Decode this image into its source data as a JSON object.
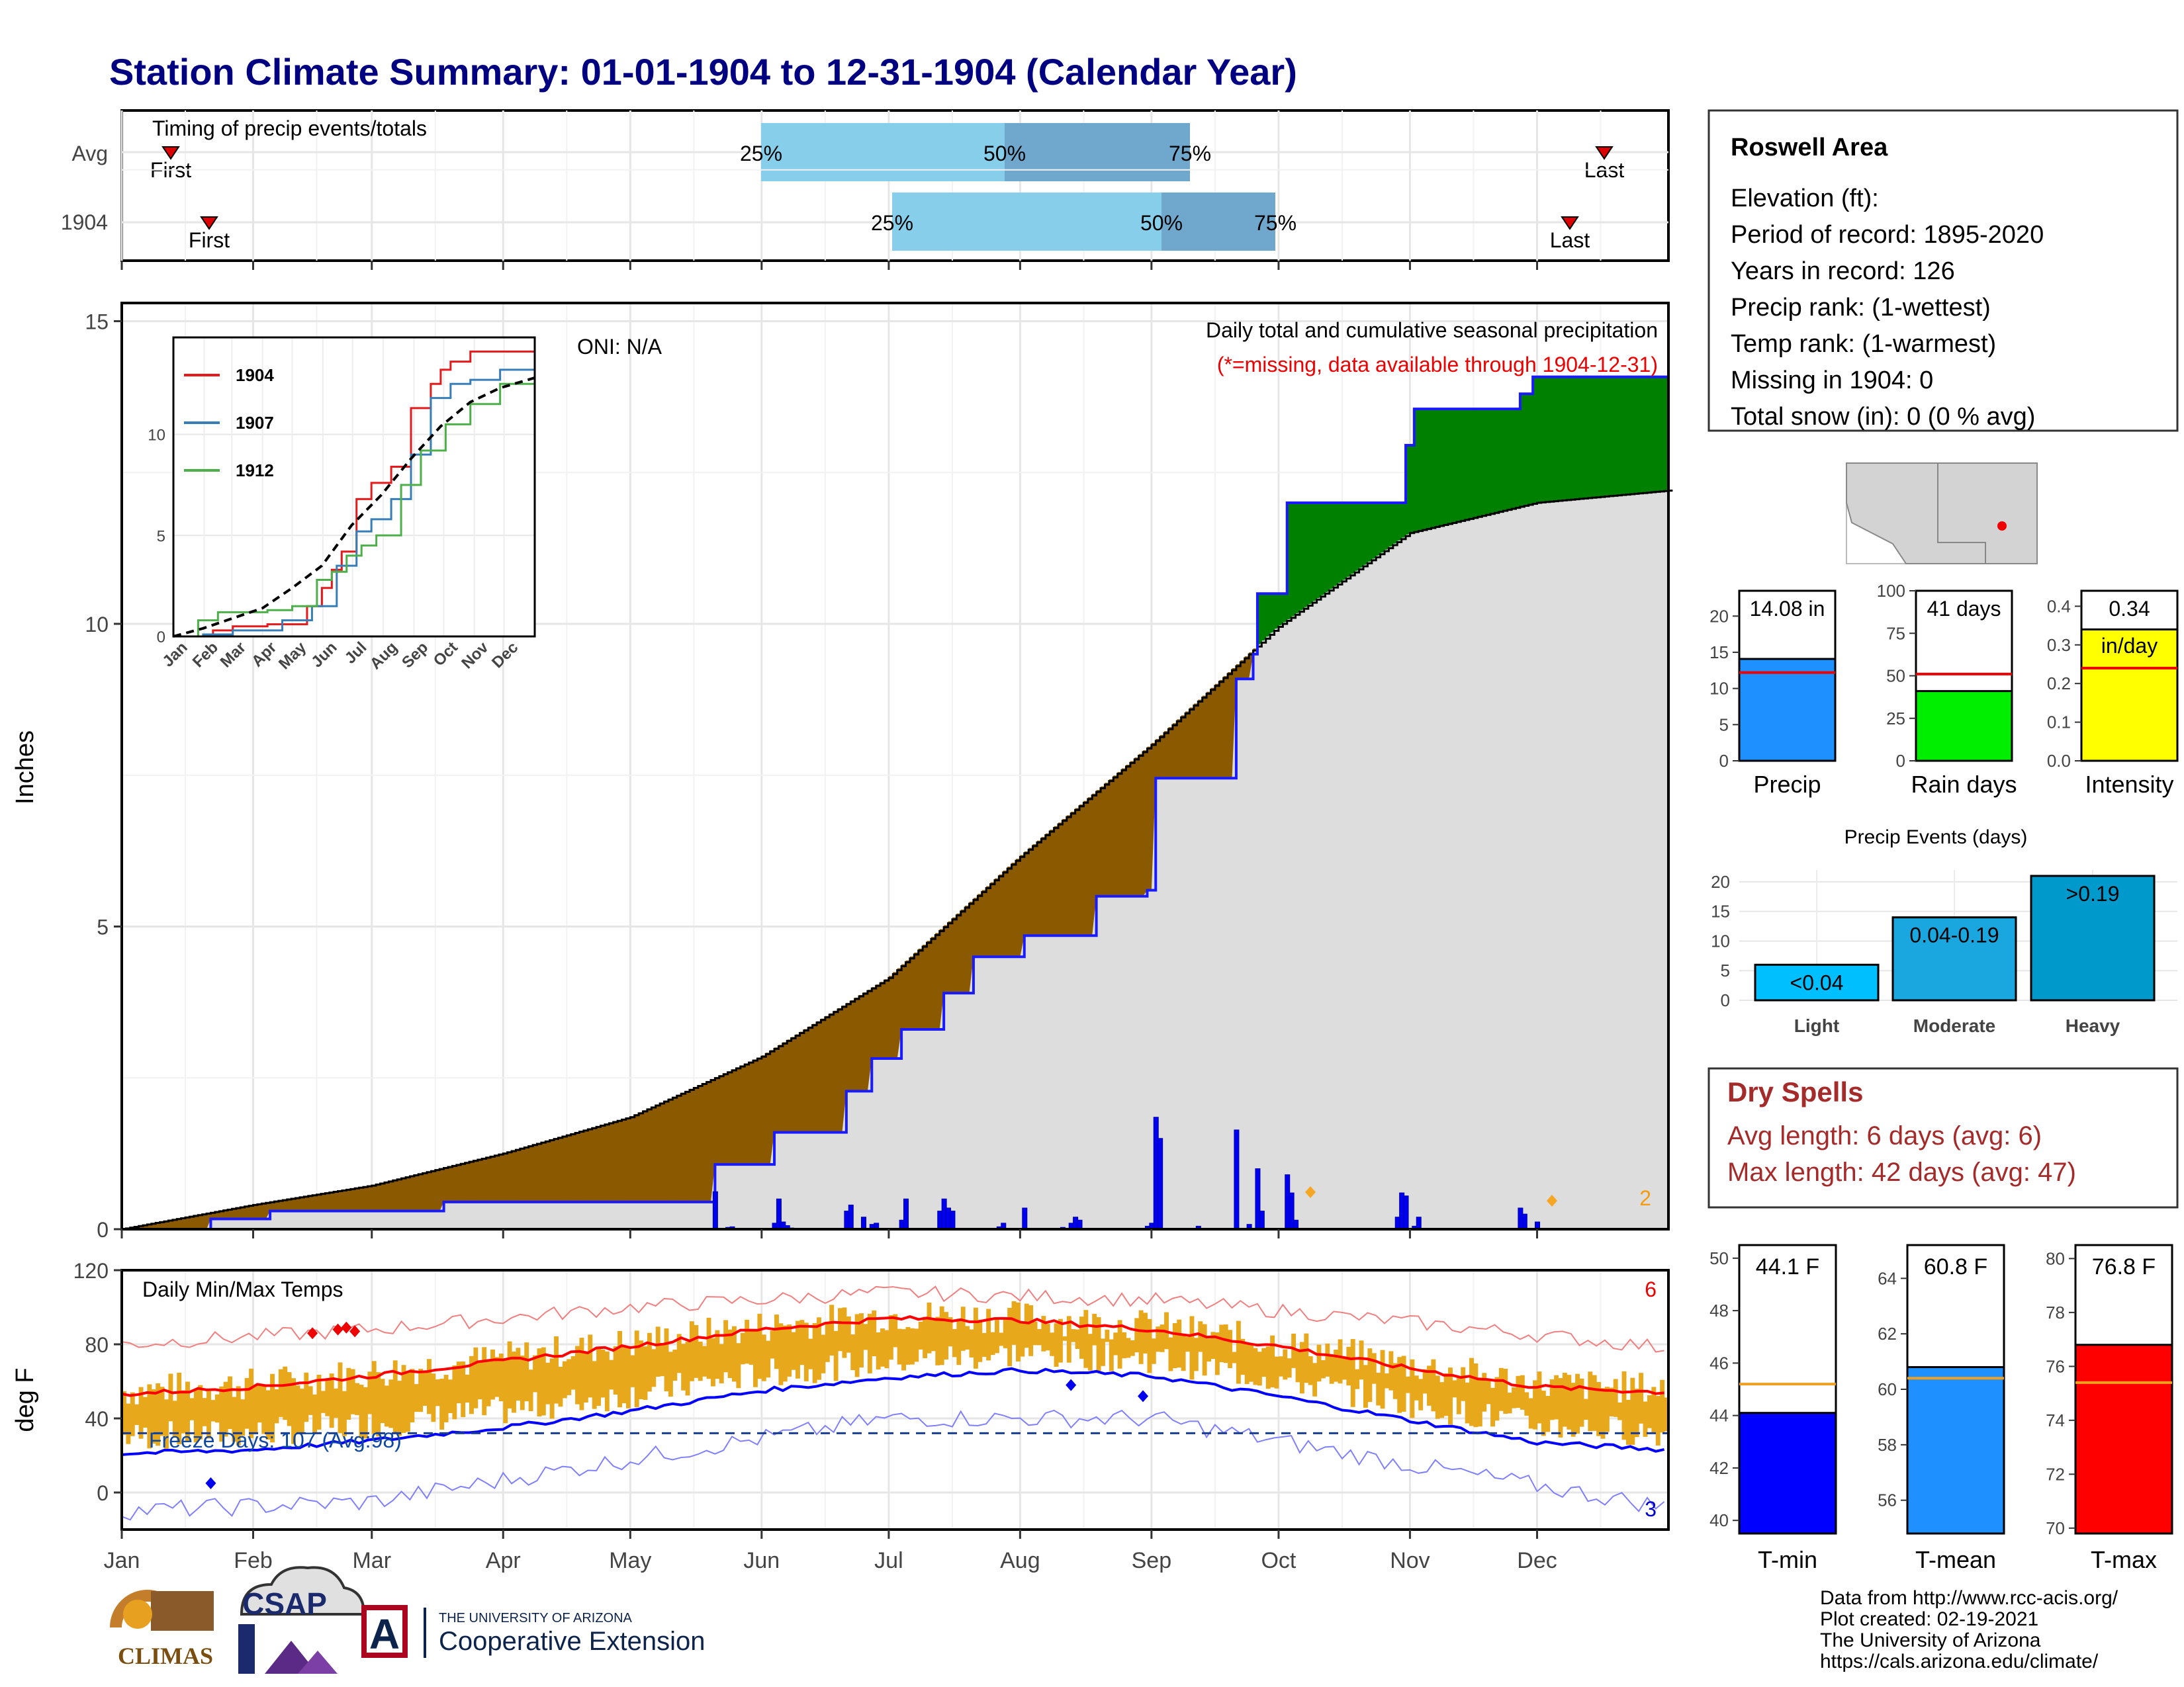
{
  "title": "Station Climate Summary: 01-01-1904 to 12-31-1904 (Calendar Year)",
  "colors": {
    "title": "#000080",
    "precip_deficit": "#8B5A00",
    "precip_surplus": "#008000",
    "cum_area": "#dddddd",
    "bars": "#0000ee",
    "tmax": "#ff0000",
    "tmin": "#0000ff",
    "temp_bar": "#e8a81c",
    "dry_spell_text": "#a52a2a",
    "timing_light": "#87ceeb",
    "timing_dark": "#6fa8cc"
  },
  "timing": {
    "label": "Timing of precip events/totals",
    "rows": [
      "Avg",
      "1904"
    ],
    "avg": {
      "first_label": "First",
      "last_label": "Last",
      "q25": "25%",
      "q50": "50%",
      "q75": "75%"
    },
    "yr": {
      "first_label": "First",
      "last_label": "Last",
      "q25": "25%",
      "q50": "50%",
      "q75": "75%"
    }
  },
  "precip": {
    "header": "Daily total and cumulative seasonal precipitation",
    "missing_note": "(*=missing, data available through 1904-12-31)",
    "oni": "ONI: N/A",
    "ylabel": "Inches",
    "yticks": [
      "0",
      "5",
      "10",
      "15"
    ],
    "corner_count": "2"
  },
  "inset": {
    "legend": [
      "1904",
      "1907",
      "1912"
    ],
    "legend_colors": [
      "#e41a1c",
      "#377eb8",
      "#4daf4a"
    ],
    "yticks": [
      "0",
      "5",
      "10"
    ],
    "months": [
      "Jan",
      "Feb",
      "Mar",
      "Apr",
      "May",
      "Jun",
      "Jul",
      "Aug",
      "Sep",
      "Oct",
      "Nov",
      "Dec"
    ]
  },
  "temp": {
    "label": "Daily Min/Max Temps",
    "ylabel": "deg F",
    "yticks": [
      "0",
      "40",
      "80",
      "120"
    ],
    "freeze": "Freeze Days: 107 (Avg:98)",
    "count_red": "6",
    "count_blue": "3"
  },
  "months": [
    "Jan",
    "Feb",
    "Mar",
    "Apr",
    "May",
    "Jun",
    "Jul",
    "Aug",
    "Sep",
    "Oct",
    "Nov",
    "Dec"
  ],
  "station": {
    "name": "Roswell Area",
    "lines": [
      "Elevation (ft):",
      "Period of record: 1895-2020",
      "Years in record: 126",
      "Precip rank:  (1-wettest)",
      "Temp rank:  (1-warmest)",
      "Missing in 1904: 0",
      "Total snow (in): 0 (0 % avg)"
    ]
  },
  "bar_panels": [
    {
      "label": "Precip",
      "value_text": "14.08 in",
      "value": 14.08,
      "avg": 12.2,
      "ymax": 23.5,
      "ticks": [
        "0",
        "5",
        "10",
        "15",
        "20"
      ],
      "tick_vals": [
        0,
        5,
        10,
        15,
        20
      ],
      "color": "#1e90ff"
    },
    {
      "label": "Rain days",
      "value_text": "41 days",
      "value": 41,
      "avg": 51,
      "ymax": 100,
      "ticks": [
        "0",
        "25",
        "50",
        "75",
        "100"
      ],
      "tick_vals": [
        0,
        25,
        50,
        75,
        100
      ],
      "color": "#00ee00"
    },
    {
      "label": "Intensity",
      "value_text": "0.34",
      "value_text2": "in/day",
      "value": 0.34,
      "avg": 0.24,
      "ymax": 0.44,
      "ticks": [
        "0.0",
        "0.1",
        "0.2",
        "0.3",
        "0.4"
      ],
      "tick_vals": [
        0,
        0.1,
        0.2,
        0.3,
        0.4
      ],
      "color": "#ffff00"
    }
  ],
  "events": {
    "title": "Precip Events (days)",
    "categories": [
      "Light",
      "Moderate",
      "Heavy"
    ],
    "labels": [
      "<0.04",
      "0.04-0.19",
      ">0.19"
    ],
    "values": [
      6,
      14,
      21
    ],
    "colors": [
      "#00bfff",
      "#1aa7e0",
      "#0099cc"
    ],
    "ticks": [
      "0",
      "5",
      "10",
      "15",
      "20"
    ]
  },
  "dry_spells": {
    "title": "Dry Spells",
    "avg": "Avg length: 6 days (avg: 6)",
    "max": "Max length: 42 days (avg: 47)"
  },
  "temp_panels": [
    {
      "label": "T-min",
      "value_text": "44.1 F",
      "value": 44.1,
      "avg": 45.2,
      "ymin": 39.5,
      "ymax": 50.5,
      "ticks": [
        "40",
        "42",
        "44",
        "46",
        "48",
        "50"
      ],
      "tick_vals": [
        40,
        42,
        44,
        46,
        48,
        50
      ],
      "color": "#0000ff"
    },
    {
      "label": "T-mean",
      "value_text": "60.8 F",
      "value": 60.8,
      "avg": 60.4,
      "ymin": 54.8,
      "ymax": 65.2,
      "ticks": [
        "56",
        "58",
        "60",
        "62",
        "64"
      ],
      "tick_vals": [
        56,
        58,
        60,
        62,
        64
      ],
      "color": "#1e90ff"
    },
    {
      "label": "T-max",
      "value_text": "76.8 F",
      "value": 76.8,
      "avg": 75.4,
      "ymin": 69.8,
      "ymax": 80.5,
      "ticks": [
        "70",
        "72",
        "74",
        "76",
        "78",
        "80"
      ],
      "tick_vals": [
        70,
        72,
        74,
        76,
        78,
        80
      ],
      "color": "#ff0000"
    }
  ],
  "footer": [
    "Data from http://www.rcc-acis.org/",
    "Plot created: 02-19-2021",
    "The University of Arizona",
    "https://cals.arizona.edu/climate/"
  ],
  "logos": {
    "climas": "CLIMAS",
    "csap": "CSAP",
    "ua_small": "THE UNIVERSITY OF ARIZONA",
    "ua_big": "Cooperative Extension",
    "ua_letter": "A"
  },
  "chart_data": [
    {
      "type": "area",
      "title": "Daily total and cumulative seasonal precipitation",
      "ylabel": "Inches",
      "ylim": [
        0,
        15.3
      ],
      "x_unit": "day of year",
      "cumulative_1904_steps": [
        [
          0,
          0
        ],
        [
          21,
          0.17
        ],
        [
          35,
          0.3
        ],
        [
          76,
          0.45
        ],
        [
          140,
          1.07
        ],
        [
          154,
          1.6
        ],
        [
          171,
          2.28
        ],
        [
          177,
          2.82
        ],
        [
          184,
          3.3
        ],
        [
          194,
          3.9
        ],
        [
          201,
          4.5
        ],
        [
          213,
          4.85
        ],
        [
          230,
          5.5
        ],
        [
          242,
          5.6
        ],
        [
          244,
          7.45
        ],
        [
          263,
          9.09
        ],
        [
          267,
          9.5
        ],
        [
          268,
          10.5
        ],
        [
          275,
          12.0
        ],
        [
          303,
          12.95
        ],
        [
          305,
          13.55
        ],
        [
          330,
          13.8
        ],
        [
          333,
          14.08
        ],
        [
          365,
          14.08
        ]
      ],
      "avg_cumulative": [
        [
          0,
          0
        ],
        [
          31,
          0.4
        ],
        [
          59,
          0.72
        ],
        [
          90,
          1.25
        ],
        [
          120,
          1.85
        ],
        [
          151,
          2.85
        ],
        [
          181,
          4.15
        ],
        [
          212,
          6.15
        ],
        [
          243,
          8.0
        ],
        [
          273,
          9.95
        ],
        [
          304,
          11.5
        ],
        [
          334,
          12.0
        ],
        [
          365,
          12.2
        ]
      ],
      "daily_bars": [
        [
          140,
          0.62
        ],
        [
          143,
          0.03
        ],
        [
          144,
          0.04
        ],
        [
          154,
          0.1
        ],
        [
          155,
          0.5
        ],
        [
          156,
          0.12
        ],
        [
          157,
          0.06
        ],
        [
          158,
          0.02
        ],
        [
          171,
          0.3
        ],
        [
          172,
          0.4
        ],
        [
          175,
          0.2
        ],
        [
          177,
          0.08
        ],
        [
          178,
          0.1
        ],
        [
          184,
          0.15
        ],
        [
          185,
          0.5
        ],
        [
          193,
          0.3
        ],
        [
          194,
          0.5
        ],
        [
          195,
          0.35
        ],
        [
          196,
          0.3
        ],
        [
          207,
          0.04
        ],
        [
          208,
          0.1
        ],
        [
          213,
          0.35
        ],
        [
          222,
          0.03
        ],
        [
          224,
          0.1
        ],
        [
          225,
          0.2
        ],
        [
          226,
          0.15
        ],
        [
          242,
          0.05
        ],
        [
          243,
          0.1
        ],
        [
          244,
          1.85
        ],
        [
          245,
          1.5
        ],
        [
          254,
          0.05
        ],
        [
          263,
          1.64
        ],
        [
          266,
          0.08
        ],
        [
          268,
          1.0
        ],
        [
          269,
          0.3
        ],
        [
          275,
          0.9
        ],
        [
          276,
          0.6
        ],
        [
          277,
          0.15
        ],
        [
          301,
          0.2
        ],
        [
          302,
          0.6
        ],
        [
          303,
          0.55
        ],
        [
          305,
          0.05
        ],
        [
          306,
          0.2
        ],
        [
          330,
          0.35
        ],
        [
          331,
          0.25
        ],
        [
          334,
          0.12
        ]
      ]
    },
    {
      "type": "line",
      "title": "",
      "series": [
        {
          "name": "1904",
          "x": [
            0,
            40,
            60,
            95,
            135,
            150,
            160,
            170,
            185,
            200,
            220,
            240,
            260,
            270,
            280,
            300,
            365
          ],
          "y": [
            0,
            0.3,
            0.5,
            0.6,
            1.5,
            2.4,
            3.3,
            4.2,
            6.8,
            7.6,
            8.4,
            11.3,
            12.5,
            13.2,
            13.6,
            14.1,
            14.5
          ]
        },
        {
          "name": "1907",
          "x": [
            0,
            30,
            60,
            110,
            140,
            165,
            185,
            200,
            220,
            240,
            260,
            280,
            300,
            330,
            365
          ],
          "y": [
            0,
            0.1,
            0.3,
            0.8,
            1.5,
            3.5,
            5.2,
            5.8,
            6.8,
            9.0,
            11.8,
            12.5,
            12.7,
            13.2,
            13.5
          ]
        },
        {
          "name": "1912",
          "x": [
            0,
            25,
            45,
            95,
            120,
            145,
            160,
            175,
            190,
            205,
            230,
            250,
            275,
            300,
            330,
            365
          ],
          "y": [
            0,
            0.8,
            1.2,
            1.3,
            1.5,
            2.8,
            3.2,
            4.0,
            4.5,
            5.0,
            7.5,
            9.2,
            10.5,
            11.5,
            12.5,
            13.0
          ]
        },
        {
          "x": [
            0,
            30,
            60,
            90,
            120,
            150,
            180,
            210,
            240,
            270,
            300,
            330,
            365
          ],
          "y": [
            0,
            0.4,
            0.9,
            1.4,
            2.4,
            3.5,
            5.5,
            7.0,
            8.8,
            10.4,
            11.6,
            12.3,
            12.8
          ]
        }
      ],
      "xlabel": "",
      "ylim": [
        0,
        14.8
      ]
    },
    {
      "type": "line",
      "title": "Daily Min/Max Temps",
      "ylabel": "deg F",
      "ylim": [
        -20,
        120
      ],
      "smooth_tmax": [
        [
          0,
          53
        ],
        [
          31,
          57
        ],
        [
          59,
          63
        ],
        [
          90,
          71
        ],
        [
          120,
          79
        ],
        [
          151,
          88
        ],
        [
          181,
          94
        ],
        [
          212,
          93
        ],
        [
          243,
          88
        ],
        [
          273,
          79
        ],
        [
          304,
          67
        ],
        [
          334,
          57
        ],
        [
          365,
          54
        ]
      ],
      "smooth_tmin": [
        [
          0,
          21
        ],
        [
          31,
          23
        ],
        [
          59,
          28
        ],
        [
          90,
          35
        ],
        [
          120,
          44
        ],
        [
          151,
          55
        ],
        [
          181,
          62
        ],
        [
          212,
          66
        ],
        [
          243,
          63
        ],
        [
          273,
          52
        ],
        [
          304,
          39
        ],
        [
          334,
          27
        ],
        [
          365,
          23
        ]
      ],
      "record_high": [
        [
          0,
          80
        ],
        [
          59,
          88
        ],
        [
          120,
          100
        ],
        [
          181,
          108
        ],
        [
          243,
          104
        ],
        [
          304,
          92
        ],
        [
          365,
          78
        ]
      ],
      "record_low": [
        [
          0,
          -10
        ],
        [
          59,
          -5
        ],
        [
          120,
          18
        ],
        [
          181,
          40
        ],
        [
          243,
          40
        ],
        [
          304,
          15
        ],
        [
          365,
          -8
        ]
      ],
      "freeze_threshold": 32
    }
  ]
}
